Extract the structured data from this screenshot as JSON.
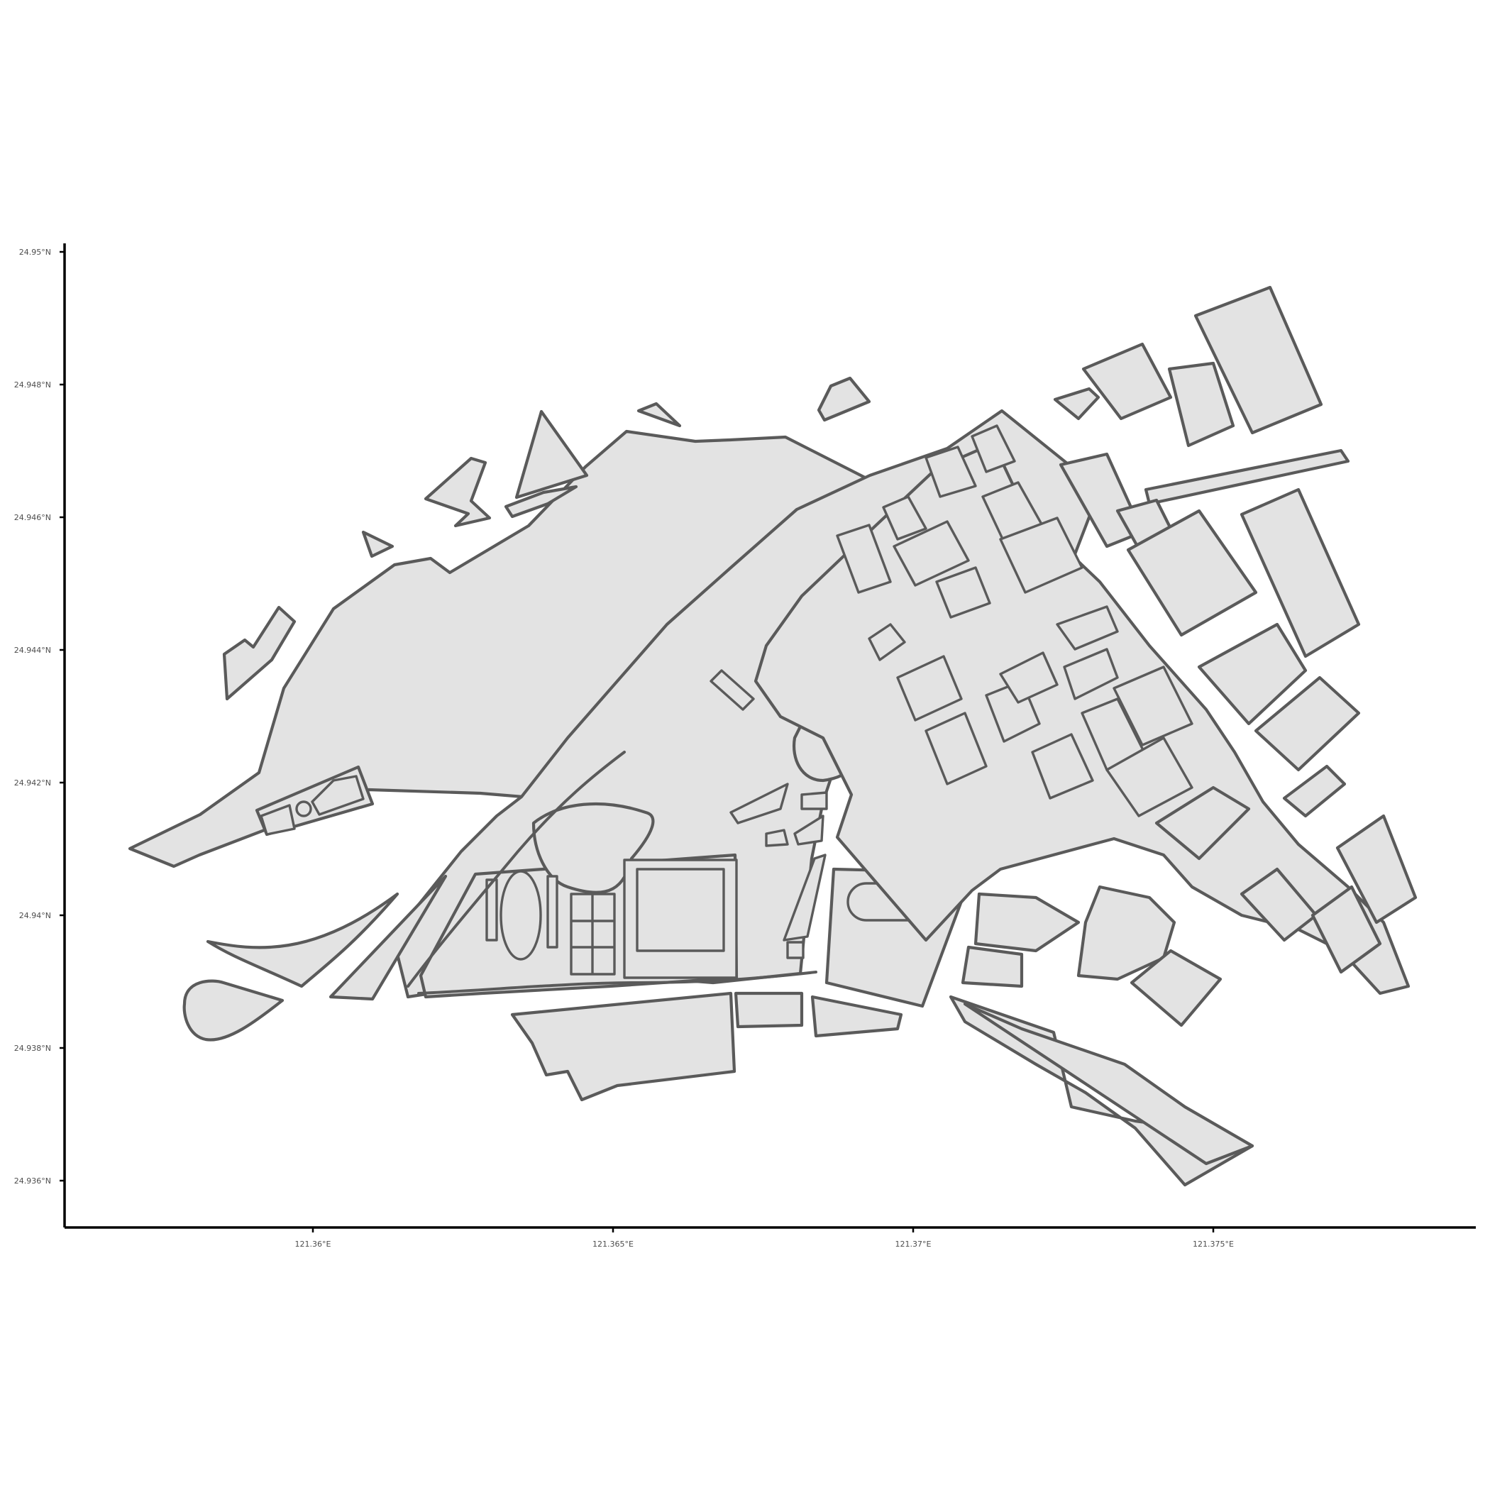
{
  "map": {
    "axes": {
      "y_ticks": [
        "24.95°N",
        "24.948°N",
        "24.946°N",
        "24.944°N",
        "24.942°N",
        "24.94°N",
        "24.938°N",
        "24.936°N"
      ],
      "x_ticks": [
        "121.36°E",
        "121.365°E",
        "121.37°E",
        "121.375°E"
      ]
    },
    "style": {
      "fill": "#e3e3e3",
      "outline": "#5a5a5a",
      "axis": "#000000",
      "background": "#ffffff"
    }
  }
}
